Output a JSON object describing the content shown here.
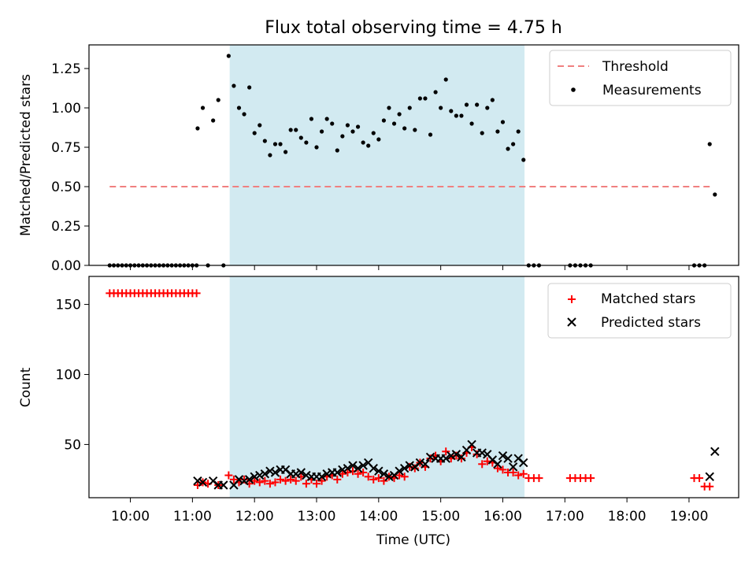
{
  "title": "Flux total observing time = 4.75 h",
  "colors": {
    "threshold": "#f08080",
    "measurements": "#000000",
    "matched": "#ff0000",
    "predicted": "#000000",
    "observing_window": "#add8e6"
  },
  "chart_data": [
    {
      "type": "scatter",
      "ylabel": "Matched/Predicted stars",
      "xlabel": "",
      "ylim": [
        0,
        1.4
      ],
      "xlim": [
        "09:20",
        "19:48"
      ],
      "yticks": [
        "0.00",
        "0.25",
        "0.50",
        "0.75",
        "1.00",
        "1.25"
      ],
      "legend_position": "top-right",
      "shaded_span": [
        "11:36",
        "16:21"
      ],
      "threshold": {
        "name": "Threshold",
        "y": 0.5,
        "x_range": [
          "09:40",
          "19:20"
        ]
      },
      "series": [
        {
          "name": "Measurements",
          "points": [
            [
              "09:40",
              0
            ],
            [
              "09:44",
              0
            ],
            [
              "09:48",
              0
            ],
            [
              "09:52",
              0
            ],
            [
              "09:56",
              0
            ],
            [
              "10:00",
              0
            ],
            [
              "10:04",
              0
            ],
            [
              "10:08",
              0
            ],
            [
              "10:12",
              0
            ],
            [
              "10:16",
              0
            ],
            [
              "10:20",
              0
            ],
            [
              "10:24",
              0
            ],
            [
              "10:28",
              0
            ],
            [
              "10:32",
              0
            ],
            [
              "10:36",
              0
            ],
            [
              "10:40",
              0
            ],
            [
              "10:44",
              0
            ],
            [
              "10:48",
              0
            ],
            [
              "10:52",
              0
            ],
            [
              "10:56",
              0
            ],
            [
              "11:00",
              0
            ],
            [
              "11:04",
              0
            ],
            [
              "11:05",
              0.87
            ],
            [
              "11:10",
              1.0
            ],
            [
              "11:15",
              0
            ],
            [
              "11:20",
              0.92
            ],
            [
              "11:25",
              1.05
            ],
            [
              "11:30",
              0
            ],
            [
              "11:35",
              1.33
            ],
            [
              "11:40",
              1.14
            ],
            [
              "11:45",
              1.0
            ],
            [
              "11:50",
              0.96
            ],
            [
              "11:55",
              1.13
            ],
            [
              "12:00",
              0.84
            ],
            [
              "12:05",
              0.89
            ],
            [
              "12:10",
              0.79
            ],
            [
              "12:15",
              0.7
            ],
            [
              "12:20",
              0.77
            ],
            [
              "12:25",
              0.77
            ],
            [
              "12:30",
              0.72
            ],
            [
              "12:35",
              0.86
            ],
            [
              "12:40",
              0.86
            ],
            [
              "12:45",
              0.81
            ],
            [
              "12:50",
              0.78
            ],
            [
              "12:55",
              0.93
            ],
            [
              "13:00",
              0.75
            ],
            [
              "13:05",
              0.85
            ],
            [
              "13:10",
              0.93
            ],
            [
              "13:15",
              0.9
            ],
            [
              "13:20",
              0.73
            ],
            [
              "13:25",
              0.82
            ],
            [
              "13:30",
              0.89
            ],
            [
              "13:35",
              0.85
            ],
            [
              "13:40",
              0.88
            ],
            [
              "13:45",
              0.78
            ],
            [
              "13:50",
              0.76
            ],
            [
              "13:55",
              0.84
            ],
            [
              "14:00",
              0.8
            ],
            [
              "14:05",
              0.92
            ],
            [
              "14:10",
              1.0
            ],
            [
              "14:15",
              0.9
            ],
            [
              "14:20",
              0.96
            ],
            [
              "14:25",
              0.87
            ],
            [
              "14:30",
              1.0
            ],
            [
              "14:35",
              0.86
            ],
            [
              "14:40",
              1.06
            ],
            [
              "14:45",
              1.06
            ],
            [
              "14:50",
              0.83
            ],
            [
              "14:55",
              1.1
            ],
            [
              "15:00",
              1.0
            ],
            [
              "15:05",
              1.18
            ],
            [
              "15:10",
              0.98
            ],
            [
              "15:15",
              0.95
            ],
            [
              "15:20",
              0.95
            ],
            [
              "15:25",
              1.02
            ],
            [
              "15:30",
              0.9
            ],
            [
              "15:35",
              1.02
            ],
            [
              "15:40",
              0.84
            ],
            [
              "15:45",
              1.0
            ],
            [
              "15:50",
              1.05
            ],
            [
              "15:55",
              0.85
            ],
            [
              "16:00",
              0.91
            ],
            [
              "16:05",
              0.74
            ],
            [
              "16:10",
              0.77
            ],
            [
              "16:15",
              0.85
            ],
            [
              "16:20",
              0.67
            ],
            [
              "16:25",
              0
            ],
            [
              "16:30",
              0
            ],
            [
              "16:35",
              0
            ],
            [
              "17:05",
              0
            ],
            [
              "17:10",
              0
            ],
            [
              "17:15",
              0
            ],
            [
              "17:20",
              0
            ],
            [
              "17:25",
              0
            ],
            [
              "19:05",
              0
            ],
            [
              "19:10",
              0
            ],
            [
              "19:15",
              0
            ],
            [
              "19:20",
              0.77
            ],
            [
              "19:25",
              0.45
            ]
          ]
        }
      ]
    },
    {
      "type": "scatter",
      "xlabel": "Time (UTC)",
      "ylabel": "Count",
      "ylim": [
        12,
        170
      ],
      "xlim": [
        "09:20",
        "19:48"
      ],
      "xticks": [
        "10:00",
        "11:00",
        "12:00",
        "13:00",
        "14:00",
        "15:00",
        "16:00",
        "17:00",
        "18:00",
        "19:00"
      ],
      "yticks": [
        "50",
        "100",
        "150"
      ],
      "legend_position": "top-right",
      "shaded_span": [
        "11:36",
        "16:21"
      ],
      "series": [
        {
          "name": "Matched stars",
          "marker": "plus",
          "points": [
            [
              "09:40",
              158
            ],
            [
              "09:44",
              158
            ],
            [
              "09:48",
              158
            ],
            [
              "09:52",
              158
            ],
            [
              "09:56",
              158
            ],
            [
              "10:00",
              158
            ],
            [
              "10:04",
              158
            ],
            [
              "10:08",
              158
            ],
            [
              "10:12",
              158
            ],
            [
              "10:16",
              158
            ],
            [
              "10:20",
              158
            ],
            [
              "10:24",
              158
            ],
            [
              "10:28",
              158
            ],
            [
              "10:32",
              158
            ],
            [
              "10:36",
              158
            ],
            [
              "10:40",
              158
            ],
            [
              "10:44",
              158
            ],
            [
              "10:48",
              158
            ],
            [
              "10:52",
              158
            ],
            [
              "10:56",
              158
            ],
            [
              "11:00",
              158
            ],
            [
              "11:04",
              158
            ],
            [
              "11:05",
              21
            ],
            [
              "11:10",
              23
            ],
            [
              "11:15",
              22
            ],
            [
              "11:25",
              21
            ],
            [
              "11:35",
              28
            ],
            [
              "11:40",
              25
            ],
            [
              "11:45",
              23
            ],
            [
              "11:50",
              25
            ],
            [
              "11:55",
              22
            ],
            [
              "12:00",
              24
            ],
            [
              "12:05",
              23
            ],
            [
              "12:10",
              24
            ],
            [
              "12:15",
              22
            ],
            [
              "12:20",
              23
            ],
            [
              "12:25",
              25
            ],
            [
              "12:30",
              24
            ],
            [
              "12:35",
              25
            ],
            [
              "12:40",
              24
            ],
            [
              "12:45",
              27
            ],
            [
              "12:50",
              22
            ],
            [
              "12:55",
              25
            ],
            [
              "13:00",
              22
            ],
            [
              "13:05",
              24
            ],
            [
              "13:10",
              27
            ],
            [
              "13:15",
              28
            ],
            [
              "13:20",
              25
            ],
            [
              "13:25",
              29
            ],
            [
              "13:30",
              30
            ],
            [
              "13:35",
              31
            ],
            [
              "13:40",
              29
            ],
            [
              "13:45",
              30
            ],
            [
              "13:50",
              27
            ],
            [
              "13:55",
              25
            ],
            [
              "14:00",
              26
            ],
            [
              "14:05",
              24
            ],
            [
              "14:10",
              27
            ],
            [
              "14:15",
              26
            ],
            [
              "14:20",
              28
            ],
            [
              "14:25",
              27
            ],
            [
              "14:30",
              34
            ],
            [
              "14:35",
              33
            ],
            [
              "14:40",
              37
            ],
            [
              "14:45",
              34
            ],
            [
              "14:50",
              40
            ],
            [
              "14:55",
              42
            ],
            [
              "15:00",
              38
            ],
            [
              "15:05",
              45
            ],
            [
              "15:10",
              40
            ],
            [
              "15:15",
              42
            ],
            [
              "15:20",
              40
            ],
            [
              "15:25",
              44
            ],
            [
              "15:30",
              48
            ],
            [
              "15:35",
              43
            ],
            [
              "15:40",
              36
            ],
            [
              "15:45",
              38
            ],
            [
              "15:50",
              37
            ],
            [
              "15:55",
              33
            ],
            [
              "16:00",
              32
            ],
            [
              "16:05",
              30
            ],
            [
              "16:10",
              30
            ],
            [
              "16:15",
              28
            ],
            [
              "16:20",
              29
            ],
            [
              "16:25",
              26
            ],
            [
              "16:30",
              26
            ],
            [
              "16:35",
              26
            ],
            [
              "17:05",
              26
            ],
            [
              "17:10",
              26
            ],
            [
              "17:15",
              26
            ],
            [
              "17:20",
              26
            ],
            [
              "17:25",
              26
            ],
            [
              "19:05",
              26
            ],
            [
              "19:10",
              26
            ],
            [
              "19:15",
              20
            ],
            [
              "19:20",
              20
            ]
          ]
        },
        {
          "name": "Predicted stars",
          "marker": "x",
          "points": [
            [
              "11:05",
              24
            ],
            [
              "11:10",
              23
            ],
            [
              "11:20",
              24
            ],
            [
              "11:25",
              21
            ],
            [
              "11:30",
              21
            ],
            [
              "11:40",
              21
            ],
            [
              "11:45",
              25
            ],
            [
              "11:50",
              24
            ],
            [
              "11:55",
              25
            ],
            [
              "12:00",
              27
            ],
            [
              "12:05",
              28
            ],
            [
              "12:10",
              29
            ],
            [
              "12:15",
              31
            ],
            [
              "12:20",
              30
            ],
            [
              "12:25",
              32
            ],
            [
              "12:30",
              32
            ],
            [
              "12:35",
              29
            ],
            [
              "12:40",
              29
            ],
            [
              "12:45",
              30
            ],
            [
              "12:50",
              28
            ],
            [
              "12:55",
              27
            ],
            [
              "13:00",
              27
            ],
            [
              "13:05",
              27
            ],
            [
              "13:10",
              29
            ],
            [
              "13:15",
              30
            ],
            [
              "13:20",
              30
            ],
            [
              "13:25",
              32
            ],
            [
              "13:30",
              33
            ],
            [
              "13:35",
              35
            ],
            [
              "13:40",
              33
            ],
            [
              "13:45",
              35
            ],
            [
              "13:50",
              37
            ],
            [
              "13:55",
              33
            ],
            [
              "14:00",
              31
            ],
            [
              "14:05",
              29
            ],
            [
              "14:10",
              27
            ],
            [
              "14:15",
              28
            ],
            [
              "14:20",
              31
            ],
            [
              "14:25",
              33
            ],
            [
              "14:30",
              35
            ],
            [
              "14:35",
              34
            ],
            [
              "14:40",
              37
            ],
            [
              "14:45",
              36
            ],
            [
              "14:50",
              41
            ],
            [
              "14:55",
              40
            ],
            [
              "15:00",
              40
            ],
            [
              "15:05",
              40
            ],
            [
              "15:10",
              42
            ],
            [
              "15:15",
              43
            ],
            [
              "15:20",
              41
            ],
            [
              "15:25",
              46
            ],
            [
              "15:30",
              50
            ],
            [
              "15:35",
              44
            ],
            [
              "15:40",
              44
            ],
            [
              "15:45",
              43
            ],
            [
              "15:50",
              39
            ],
            [
              "15:55",
              36
            ],
            [
              "16:00",
              42
            ],
            [
              "16:05",
              40
            ],
            [
              "16:10",
              34
            ],
            [
              "16:15",
              40
            ],
            [
              "16:20",
              37
            ],
            [
              "19:20",
              27
            ],
            [
              "19:25",
              45
            ]
          ]
        }
      ]
    }
  ]
}
